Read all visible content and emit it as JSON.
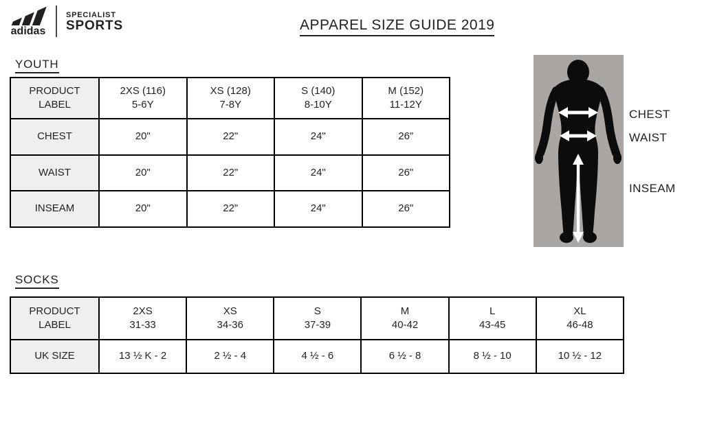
{
  "logo": {
    "brand": "adidas",
    "partner_line1": "SPECIALIST",
    "partner_line2": "SPORTS"
  },
  "title": "APPAREL SIZE GUIDE 2019",
  "youth": {
    "heading": "YOUTH",
    "table": {
      "header": [
        {
          "label": "PRODUCT",
          "sub": "LABEL"
        },
        {
          "label": "2XS (116)",
          "sub": "5-6Y"
        },
        {
          "label": "XS (128)",
          "sub": "7-8Y"
        },
        {
          "label": "S (140)",
          "sub": "8-10Y"
        },
        {
          "label": "M (152)",
          "sub": "11-12Y"
        }
      ],
      "rows": [
        {
          "label": "CHEST",
          "values": [
            "20\"",
            "22\"",
            "24\"",
            "26\""
          ]
        },
        {
          "label": "WAIST",
          "values": [
            "20\"",
            "22\"",
            "24\"",
            "26\""
          ]
        },
        {
          "label": "INSEAM",
          "values": [
            "20\"",
            "22\"",
            "24\"",
            "26\""
          ]
        }
      ]
    }
  },
  "diagram": {
    "chest": "CHEST",
    "waist": "WAIST",
    "inseam": "INSEAM"
  },
  "socks": {
    "heading": "SOCKS",
    "table": {
      "header": [
        {
          "label": "PRODUCT",
          "sub": "LABEL"
        },
        {
          "label": "2XS",
          "sub": "31-33"
        },
        {
          "label": "XS",
          "sub": "34-36"
        },
        {
          "label": "S",
          "sub": "37-39"
        },
        {
          "label": "M",
          "sub": "40-42"
        },
        {
          "label": "L",
          "sub": "43-45"
        },
        {
          "label": "XL",
          "sub": "46-48"
        }
      ],
      "rows": [
        {
          "label": "UK SIZE",
          "values": [
            "13 ½ K - 2",
            "2 ½ - 4",
            "4 ½ - 6",
            "6 ½ - 8",
            "8 ½ - 10",
            "10 ½ - 12"
          ]
        }
      ]
    }
  }
}
